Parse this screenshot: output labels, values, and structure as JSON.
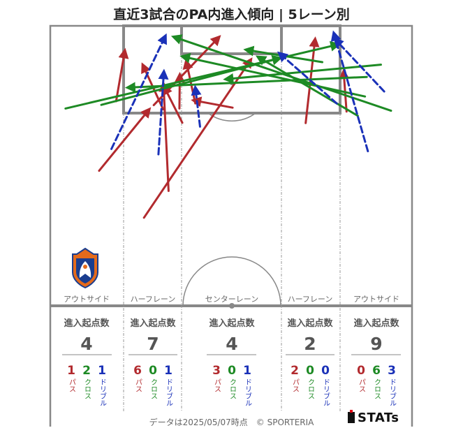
{
  "title": "直近3試合のPA内進入傾向 | 5レーン別",
  "colors": {
    "pass": "#b22a2e",
    "cross": "#1d8a24",
    "dribble": "#1a31b8",
    "pitch_line": "#888888"
  },
  "legend_labels": {
    "pass": "パス",
    "cross": "クロス",
    "dribble": "ドリブル"
  },
  "lanes": [
    {
      "name": "アウトサイド",
      "header": "進入起点数",
      "total": 4,
      "pass": 1,
      "cross": 2,
      "dribble": 1
    },
    {
      "name": "ハーフレーン",
      "header": "進入起点数",
      "total": 7,
      "pass": 6,
      "cross": 0,
      "dribble": 1
    },
    {
      "name": "センターレーン",
      "header": "進入起点数",
      "total": 4,
      "pass": 3,
      "cross": 0,
      "dribble": 1
    },
    {
      "name": "ハーフレーン",
      "header": "進入起点数",
      "total": 2,
      "pass": 2,
      "cross": 0,
      "dribble": 0
    },
    {
      "name": "アウトサイド",
      "header": "進入起点数",
      "total": 9,
      "pass": 0,
      "cross": 6,
      "dribble": 3
    }
  ],
  "footer": "データは2025/05/07時点　© SPORTERIA",
  "brand": "STATs",
  "logo_icon": "club-crest-icon",
  "chart_data": {
    "type": "arrow-map",
    "title": "直近3試合のPA内進入傾向 | 5レーン別",
    "x_range": [
      0,
      100
    ],
    "y_range": [
      0,
      100
    ],
    "arrows": [
      {
        "kind": "pass",
        "x0": 25.9,
        "y0": 68.7,
        "x1": 55.4,
        "y1": 12.2
      },
      {
        "kind": "pass",
        "x0": 28.6,
        "y0": 28.4,
        "x1": 46.6,
        "y1": 4.1
      },
      {
        "kind": "pass",
        "x0": 32.7,
        "y0": 59.1,
        "x1": 31.3,
        "y1": 20.9
      },
      {
        "kind": "pass",
        "x0": 36.5,
        "y0": 34.7,
        "x1": 31.5,
        "y1": 21.9
      },
      {
        "kind": "pass",
        "x0": 40.1,
        "y0": 27.8,
        "x1": 37.6,
        "y1": 12.8
      },
      {
        "kind": "pass",
        "x0": 35.7,
        "y0": 29.6,
        "x1": 35.8,
        "y1": 17.6
      },
      {
        "kind": "pass",
        "x0": 50.4,
        "y0": 29.3,
        "x1": 39.7,
        "y1": 26.7
      },
      {
        "kind": "pass",
        "x0": 18.2,
        "y0": 27.0,
        "x1": 20.6,
        "y1": 9.0
      },
      {
        "kind": "pass",
        "x0": 13.5,
        "y0": 51.9,
        "x1": 27.3,
        "y1": 30.0
      },
      {
        "kind": "pass",
        "x0": 70.6,
        "y0": 34.8,
        "x1": 73.2,
        "y1": 4.9
      },
      {
        "kind": "pass",
        "x0": 81.9,
        "y0": 30.7,
        "x1": 81.1,
        "y1": 16.4
      },
      {
        "kind": "pass",
        "x0": 31.2,
        "y0": 29.9,
        "x1": 25.6,
        "y1": 14.1
      },
      {
        "kind": "cross",
        "x0": 4.2,
        "y0": 29.6,
        "x1": 79.5,
        "y1": 6.7
      },
      {
        "kind": "cross",
        "x0": 14.1,
        "y0": 28.3,
        "x1": 63.4,
        "y1": 11.6
      },
      {
        "kind": "cross",
        "x0": 94.2,
        "y0": 30.4,
        "x1": 34.2,
        "y1": 4.0
      },
      {
        "kind": "cross",
        "x0": 87.0,
        "y0": 25.3,
        "x1": 36.6,
        "y1": 11.0
      },
      {
        "kind": "cross",
        "x0": 87.5,
        "y0": 18.3,
        "x1": 21.5,
        "y1": 22.1
      },
      {
        "kind": "cross",
        "x0": 75.2,
        "y0": 13.0,
        "x1": 54.2,
        "y1": 8.6
      },
      {
        "kind": "cross",
        "x0": 85.0,
        "y0": 32.2,
        "x1": 57.5,
        "y1": 11.2
      },
      {
        "kind": "cross",
        "x0": 91.4,
        "y0": 13.9,
        "x1": 48.6,
        "y1": 19.1
      },
      {
        "kind": "dribble",
        "x0": 16.9,
        "y0": 44.1,
        "x1": 31.8,
        "y1": 3.7
      },
      {
        "kind": "dribble",
        "x0": 29.9,
        "y0": 46.0,
        "x1": 31.4,
        "y1": 16.5
      },
      {
        "kind": "dribble",
        "x0": 41.4,
        "y0": 36.1,
        "x1": 40.1,
        "y1": 22.2
      },
      {
        "kind": "dribble",
        "x0": 87.8,
        "y0": 44.9,
        "x1": 78.4,
        "y1": 2.7
      },
      {
        "kind": "dribble",
        "x0": 92.3,
        "y0": 23.5,
        "x1": 78.8,
        "y1": 4.9
      },
      {
        "kind": "dribble",
        "x0": 79.2,
        "y0": 27.8,
        "x1": 63.4,
        "y1": 9.9
      }
    ]
  }
}
